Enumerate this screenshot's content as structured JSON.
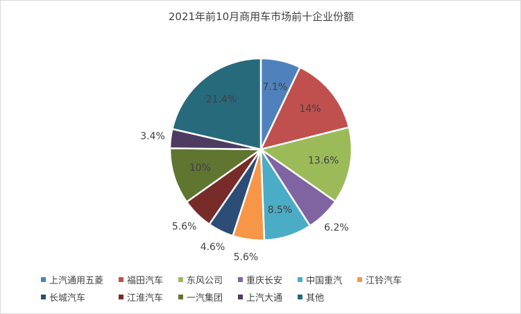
{
  "chart_data": {
    "type": "pie",
    "title": "2021年前10月商用车市场前十企业份额",
    "slices": [
      {
        "name": "上汽通用五菱",
        "value": 7.1,
        "label": "7.1%",
        "color": "#4f81bd"
      },
      {
        "name": "福田汽车",
        "value": 14,
        "label": "14%",
        "color": "#c0504d"
      },
      {
        "name": "东风公司",
        "value": 13.6,
        "label": "13.6%",
        "color": "#9bbb59"
      },
      {
        "name": "重庆长安",
        "value": 6.2,
        "label": "6.2%",
        "color": "#8064a2"
      },
      {
        "name": "中国重汽",
        "value": 8.5,
        "label": "8.5%",
        "color": "#4bacc6"
      },
      {
        "name": "江铃汽车",
        "value": 5.6,
        "label": "5.6%",
        "color": "#f79646"
      },
      {
        "name": "长城汽车",
        "value": 4.6,
        "label": "4.6%",
        "color": "#2c4d75"
      },
      {
        "name": "江淮汽车",
        "value": 5.6,
        "label": "5.6%",
        "color": "#772c2a"
      },
      {
        "name": "一汽集团",
        "value": 10,
        "label": "10%",
        "color": "#5f7530"
      },
      {
        "name": "上汽大通",
        "value": 3.4,
        "label": "3.4%",
        "color": "#4d3b62"
      },
      {
        "name": "其他",
        "value": 21.4,
        "label": "21.4%",
        "color": "#276a7c"
      }
    ],
    "legend_position": "bottom"
  }
}
